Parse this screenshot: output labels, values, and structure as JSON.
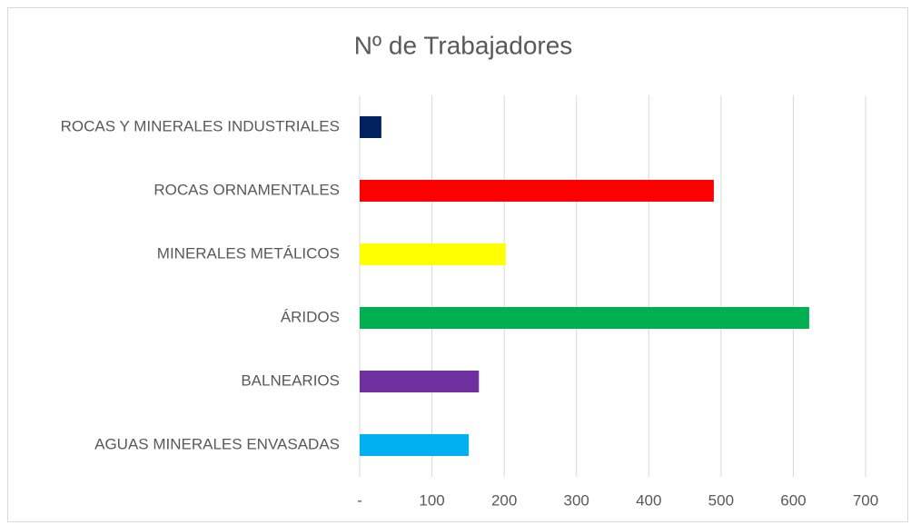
{
  "chart_data": {
    "type": "barh",
    "title": "Nº de Trabajadores",
    "categories": [
      "ROCAS Y MINERALES INDUSTRIALES",
      "ROCAS ORNAMENTALES",
      "MINERALES METÁLICOS",
      "ÁRIDOS",
      "BALNEARIOS",
      "AGUAS MINERALES ENVASADAS"
    ],
    "values": [
      30,
      490,
      202,
      622,
      165,
      151
    ],
    "colors": [
      "#002060",
      "#ff0000",
      "#ffff00",
      "#00b050",
      "#7030a0",
      "#00b0f0"
    ],
    "xlim": [
      0,
      700
    ],
    "xticks": [
      {
        "value": 0,
        "label": "-"
      },
      100,
      200,
      300,
      400,
      500,
      600,
      700
    ],
    "grid": true
  }
}
